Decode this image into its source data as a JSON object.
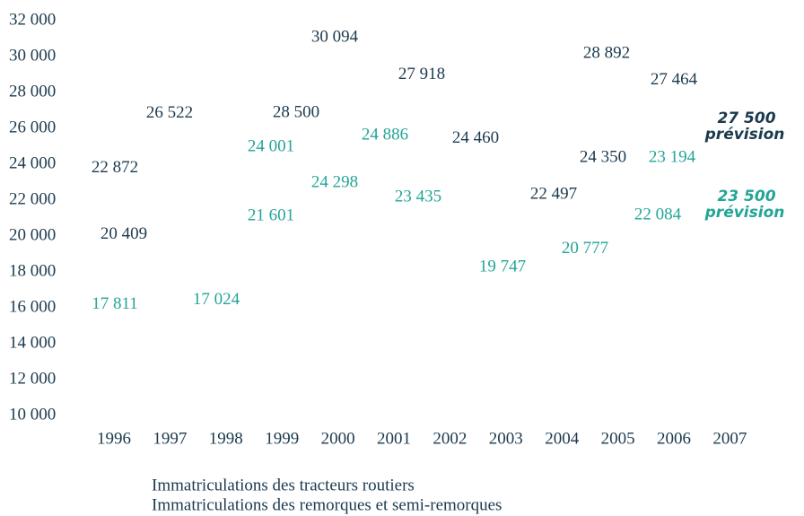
{
  "chart_data": {
    "type": "line",
    "categories": [
      "1996",
      "1997",
      "1998",
      "1999",
      "2000",
      "2001",
      "2002",
      "2003",
      "2004",
      "2005",
      "2006",
      "2007"
    ],
    "ylim": [
      10000,
      32000
    ],
    "yticks": [
      {
        "value": 10000,
        "label": "10 000"
      },
      {
        "value": 12000,
        "label": "12 000"
      },
      {
        "value": 14000,
        "label": "14 000"
      },
      {
        "value": 16000,
        "label": "16 000"
      },
      {
        "value": 18000,
        "label": "18 000"
      },
      {
        "value": 20000,
        "label": "20 000"
      },
      {
        "value": 22000,
        "label": "22 000"
      },
      {
        "value": 24000,
        "label": "24 000"
      },
      {
        "value": 26000,
        "label": "26 000"
      },
      {
        "value": 28000,
        "label": "28 000"
      },
      {
        "value": 30000,
        "label": "30 000"
      },
      {
        "value": 32000,
        "label": "32 000"
      }
    ],
    "grid": false,
    "series": [
      {
        "name": "Immatriculations des tracteurs routiers",
        "color": "#1b3a4e",
        "values": [
          20409,
          22872,
          26522,
          28500,
          30094,
          27918,
          24460,
          22497,
          24350,
          28892,
          27464,
          27500
        ],
        "value_labels": [
          "20 409",
          "22 872",
          "26 522",
          "28 500",
          "30 094",
          "27 918",
          "24 460",
          "22 497",
          "24 350",
          "28 892",
          "27 464",
          "27 500"
        ],
        "forecast_label": "prévision"
      },
      {
        "name": "Immatriculations des remorques et semi-remorques",
        "color": "#23a596",
        "values": [
          17811,
          17024,
          21601,
          24001,
          24298,
          24886,
          23435,
          19747,
          20777,
          23194,
          22084,
          23500
        ],
        "value_labels": [
          "17 811",
          "17 024",
          "21 601",
          "24 001",
          "24 298",
          "24 886",
          "23 435",
          "19 747",
          "20 777",
          "23 194",
          "22 084",
          "23 500"
        ],
        "forecast_label": "prévision"
      }
    ]
  }
}
